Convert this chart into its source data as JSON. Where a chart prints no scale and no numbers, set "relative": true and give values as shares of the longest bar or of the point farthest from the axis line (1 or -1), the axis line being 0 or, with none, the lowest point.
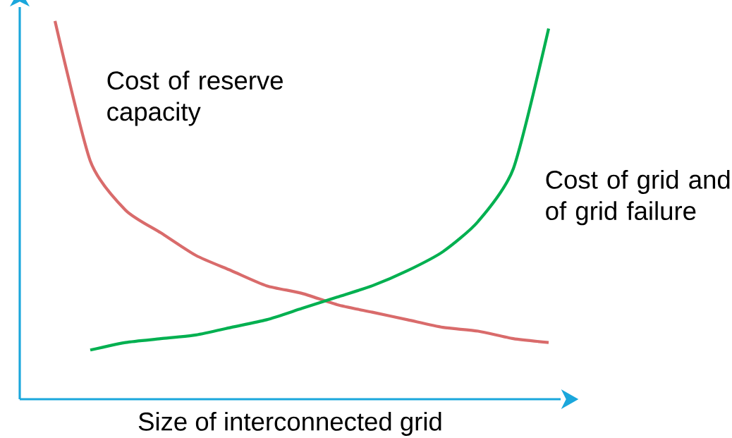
{
  "chart_data": {
    "type": "line",
    "relative": true,
    "xlabel": "Size of interconnected grid",
    "legend": false,
    "categories": [
      null,
      null,
      null,
      null,
      null,
      null,
      null,
      null,
      null,
      null,
      null,
      null,
      null,
      null,
      null
    ],
    "series": [
      {
        "name": "Cost of reserve capacity",
        "color": "#d96b6b",
        "values": [
          1.0,
          0.63,
          0.5,
          0.44,
          0.38,
          0.34,
          0.3,
          0.28,
          0.25,
          0.23,
          0.21,
          0.19,
          0.18,
          0.16,
          0.15
        ]
      },
      {
        "name": "Cost of grid and of grid failure",
        "color": "#00b050",
        "values": [
          null,
          0.13,
          0.15,
          0.16,
          0.17,
          0.19,
          0.21,
          0.24,
          0.27,
          0.3,
          0.34,
          0.39,
          0.47,
          0.61,
          0.98
        ]
      }
    ]
  }
}
